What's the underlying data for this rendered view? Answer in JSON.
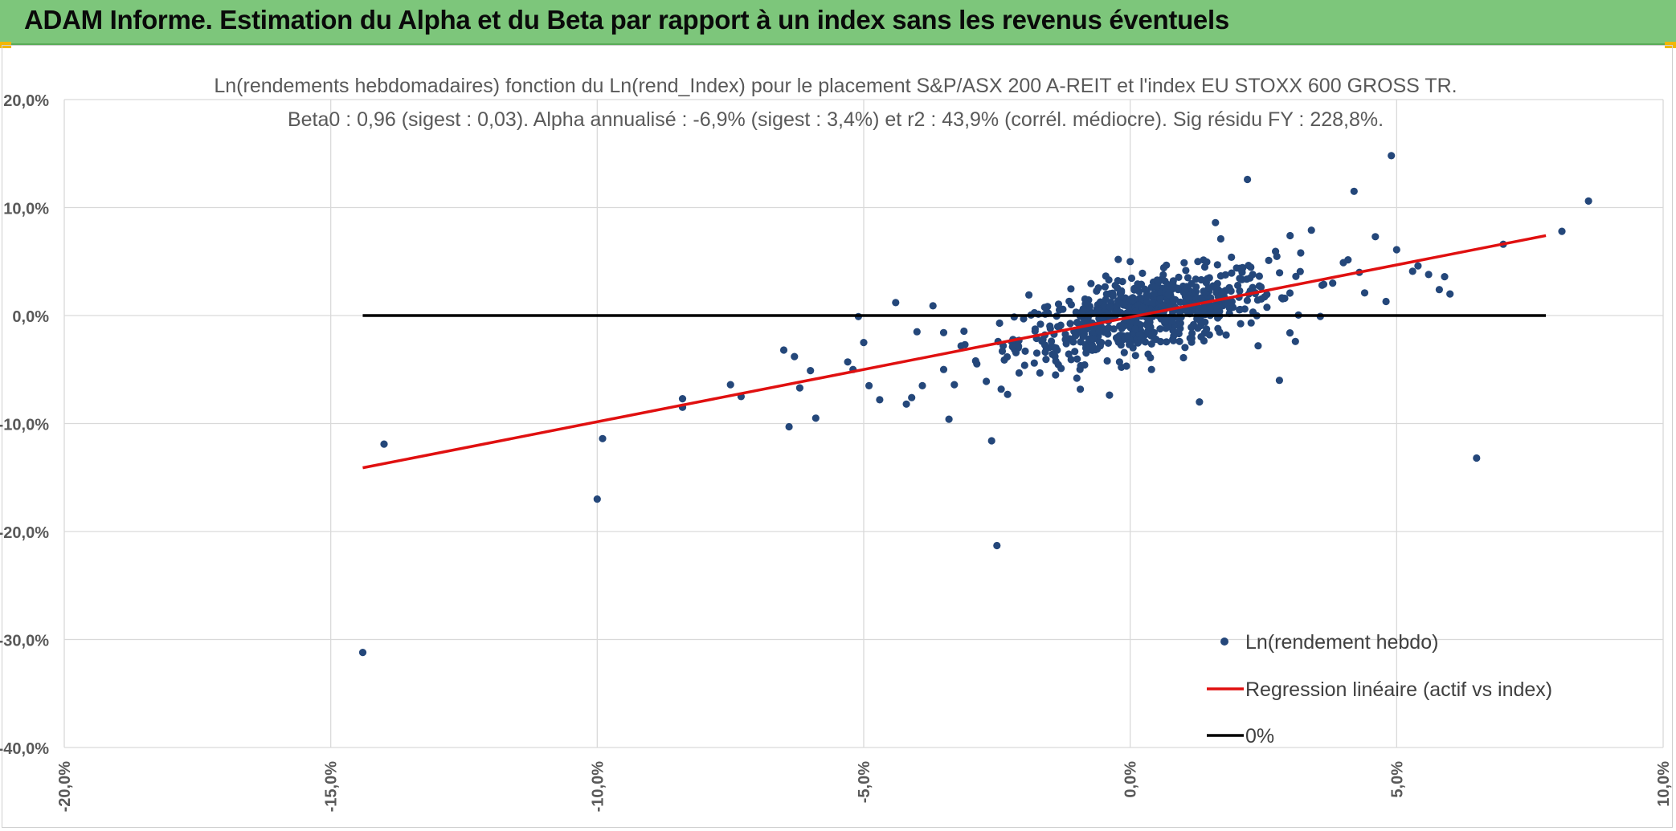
{
  "banner": {
    "title": "ADAM Informe. Estimation du Alpha et du Beta par rapport à un index sans les revenus éventuels",
    "color": "#7dc67b"
  },
  "chart_data": {
    "type": "scatter",
    "title": "Ln(rendements hebdomadaires) fonction du Ln(rend_Index) pour le placement S&P/ASX 200 A-REIT et l'index EU STOXX 600 GROSS TR.",
    "subtitle": "Beta0 : 0,96 (sigest : 0,03). Alpha annualisé : -6,9% (sigest : 3,4%) et r2 : 43,9% (corrél. médiocre). Sig résidu FY : 228,8%.",
    "xlabel": "",
    "ylabel": "",
    "xlim": [
      -20,
      10
    ],
    "ylim": [
      -40,
      20
    ],
    "x_ticks": [
      "-20,0%",
      "-15,0%",
      "-10,0%",
      "-5,0%",
      "0,0%",
      "5,0%",
      "10,0%"
    ],
    "y_ticks": [
      "20,0%",
      "10,0%",
      "0,0%",
      "-10,0%",
      "-20,0%",
      "-30,0%",
      "-40,0%"
    ],
    "grid": true,
    "legend_position": "bottom-right",
    "series": [
      {
        "name": "Ln(rendement hebdo)",
        "color": "#24477a",
        "points": [
          [
            -14.4,
            -31.2
          ],
          [
            -14.0,
            -11.9
          ],
          [
            -10.0,
            -17.0
          ],
          [
            -9.9,
            -11.4
          ],
          [
            -8.4,
            -8.5
          ],
          [
            -8.4,
            -7.7
          ],
          [
            -7.5,
            -6.4
          ],
          [
            -7.3,
            -7.5
          ],
          [
            -6.5,
            -3.2
          ],
          [
            -6.4,
            -10.3
          ],
          [
            -6.3,
            -3.8
          ],
          [
            -6.2,
            -6.7
          ],
          [
            -6.0,
            -5.1
          ],
          [
            -5.9,
            -9.5
          ],
          [
            -5.3,
            -4.3
          ],
          [
            -5.2,
            -5.0
          ],
          [
            -5.1,
            -0.1
          ],
          [
            -5.0,
            -2.5
          ],
          [
            -4.9,
            -6.5
          ],
          [
            -4.7,
            -7.8
          ],
          [
            -4.4,
            1.2
          ],
          [
            -4.2,
            -8.2
          ],
          [
            -4.1,
            -7.6
          ],
          [
            -4.0,
            -1.5
          ],
          [
            -3.9,
            -6.5
          ],
          [
            -3.7,
            0.9
          ],
          [
            -3.5,
            -5.0
          ],
          [
            -3.4,
            -9.6
          ],
          [
            -3.3,
            -6.4
          ],
          [
            -3.1,
            -2.7
          ],
          [
            -2.9,
            -4.2
          ],
          [
            -2.7,
            -6.1
          ],
          [
            -2.6,
            -11.6
          ],
          [
            -2.5,
            -21.3
          ],
          [
            -2.4,
            -3.3
          ],
          [
            -2.3,
            -7.3
          ],
          [
            -2.1,
            -3.0
          ],
          [
            -2.0,
            -0.3
          ],
          [
            -1.9,
            1.9
          ],
          [
            -1.8,
            -4.4
          ],
          [
            -1.6,
            -1.8
          ],
          [
            -1.4,
            -5.5
          ],
          [
            -1.2,
            -2.6
          ],
          [
            -1.0,
            -5.8
          ],
          [
            -0.6,
            -1.9
          ],
          [
            -0.5,
            1.0
          ],
          [
            -0.4,
            3.3
          ],
          [
            -0.3,
            0.8
          ],
          [
            -0.2,
            -4.3
          ],
          [
            0.0,
            5.0
          ],
          [
            0.1,
            -3.7
          ],
          [
            0.2,
            1.6
          ],
          [
            0.4,
            -5.0
          ],
          [
            0.6,
            3.4
          ],
          [
            0.8,
            -2.2
          ],
          [
            0.9,
            2.4
          ],
          [
            1.0,
            -3.9
          ],
          [
            1.2,
            1.3
          ],
          [
            1.3,
            -8.0
          ],
          [
            1.4,
            4.5
          ],
          [
            1.6,
            8.6
          ],
          [
            1.7,
            7.1
          ],
          [
            1.8,
            -1.8
          ],
          [
            1.9,
            5.4
          ],
          [
            2.1,
            4.0
          ],
          [
            2.2,
            12.6
          ],
          [
            2.4,
            -2.8
          ],
          [
            2.6,
            5.1
          ],
          [
            2.8,
            -6.0
          ],
          [
            2.9,
            1.6
          ],
          [
            3.0,
            7.4
          ],
          [
            3.1,
            -2.4
          ],
          [
            3.2,
            5.8
          ],
          [
            3.4,
            7.9
          ],
          [
            3.6,
            2.8
          ],
          [
            3.8,
            3.0
          ],
          [
            4.0,
            4.9
          ],
          [
            4.2,
            11.5
          ],
          [
            4.3,
            4.0
          ],
          [
            4.4,
            2.1
          ],
          [
            4.6,
            7.3
          ],
          [
            4.8,
            1.3
          ],
          [
            4.9,
            14.8
          ],
          [
            5.0,
            6.1
          ],
          [
            5.3,
            4.1
          ],
          [
            5.4,
            4.6
          ],
          [
            5.6,
            3.8
          ],
          [
            5.8,
            2.4
          ],
          [
            5.9,
            3.6
          ],
          [
            6.0,
            2.0
          ],
          [
            6.5,
            -13.2
          ],
          [
            7.0,
            6.6
          ],
          [
            8.1,
            7.8
          ],
          [
            8.6,
            10.6
          ]
        ]
      },
      {
        "name": "Regression linéaire (actif vs index)",
        "color": "#e01010",
        "line": [
          [
            -14.4,
            -14.1
          ],
          [
            7.8,
            7.4
          ]
        ]
      },
      {
        "name": "0%",
        "color": "#000000",
        "line": [
          [
            -14.4,
            0
          ],
          [
            7.8,
            0
          ]
        ]
      }
    ]
  }
}
